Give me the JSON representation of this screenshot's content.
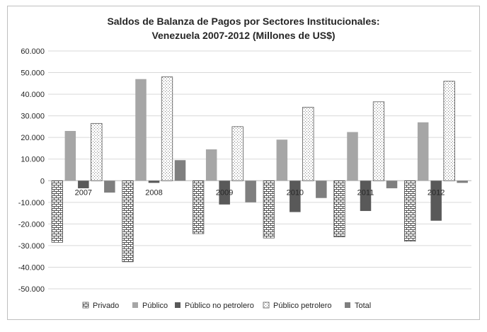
{
  "chart_data": {
    "type": "bar",
    "title_line1": "Saldos de Balanza de Pagos por Sectores Institucionales:",
    "title_line2": "Venezuela 2007-2012 (Millones de US$)",
    "categories": [
      "2007",
      "2008",
      "2009",
      "2010",
      "2011",
      "2012"
    ],
    "ylim": [
      -50000,
      60000
    ],
    "yticks": [
      60000,
      50000,
      40000,
      30000,
      20000,
      10000,
      0,
      -10000,
      -20000,
      -30000,
      -40000,
      -50000
    ],
    "ytick_labels": [
      "60.000",
      "50.000",
      "40.000",
      "30.000",
      "20.000",
      "10.000",
      "0",
      "-10.000",
      "-20.000",
      "-30.000",
      "-40.000",
      "-50.000"
    ],
    "grid": true,
    "legend_position": "bottom",
    "series": [
      {
        "name": "Privado",
        "pattern": "brick",
        "color": "#ffffff",
        "values": [
          -28500,
          -37500,
          -24500,
          -26500,
          -26000,
          -28000
        ]
      },
      {
        "name": "Público",
        "pattern": "solid",
        "color": "#a6a6a6",
        "values": [
          23000,
          47000,
          14500,
          19000,
          22500,
          27000
        ]
      },
      {
        "name": "Público no petrolero",
        "pattern": "solid",
        "color": "#595959",
        "values": [
          -3500,
          -1000,
          -11000,
          -14500,
          -14000,
          -18500
        ]
      },
      {
        "name": "Público petrolero",
        "pattern": "dots",
        "color": "#ffffff",
        "values": [
          26500,
          48000,
          25000,
          34000,
          36500,
          46000
        ]
      },
      {
        "name": "Total",
        "pattern": "solid",
        "color": "#7f7f7f",
        "values": [
          -5500,
          9500,
          -10000,
          -8000,
          -3500,
          -1000
        ]
      }
    ]
  }
}
